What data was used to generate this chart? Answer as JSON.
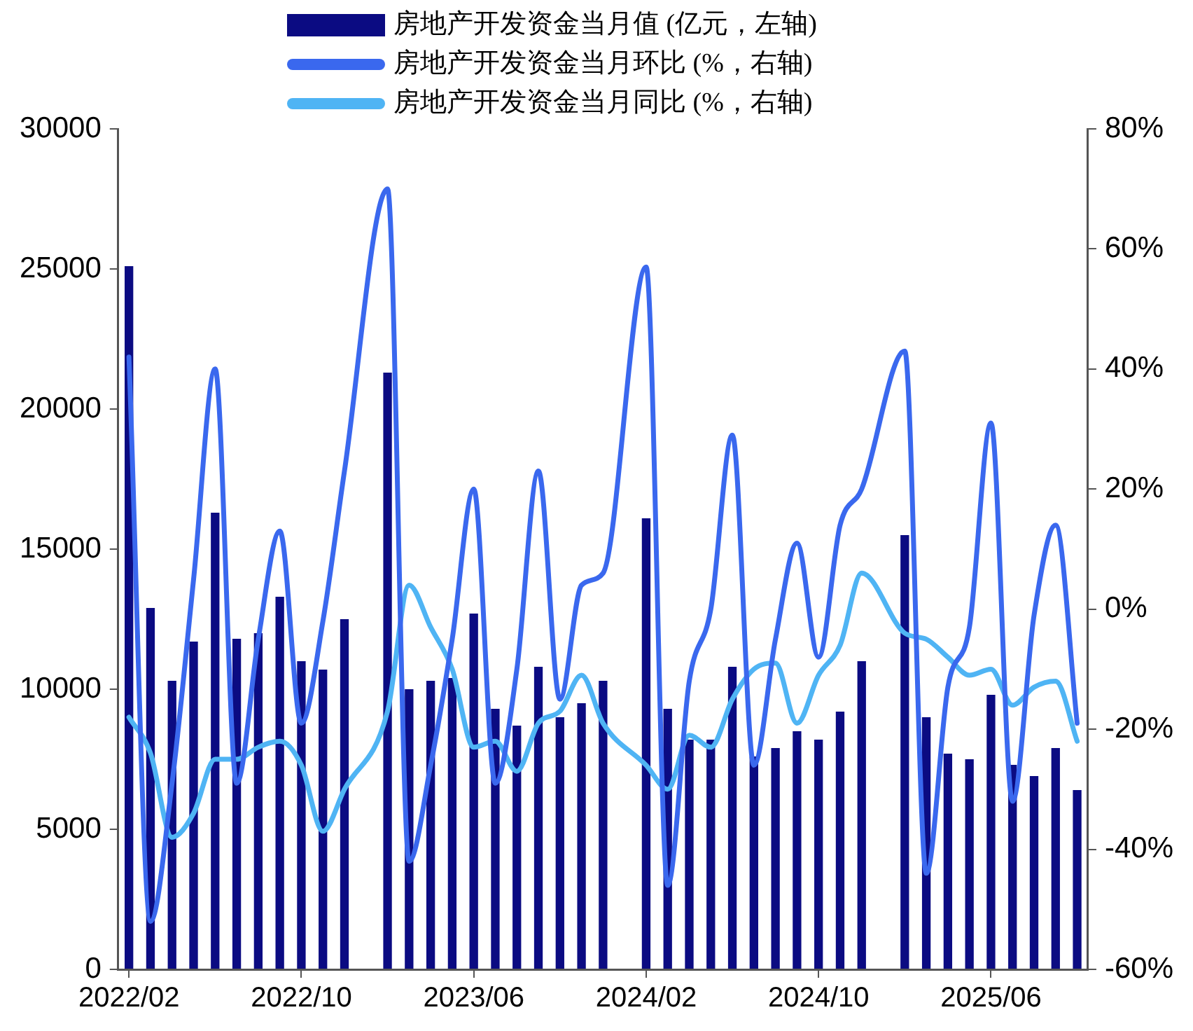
{
  "chart_data": {
    "type": "bar",
    "categories": [
      "2022/02",
      null,
      null,
      null,
      null,
      null,
      null,
      null,
      "2022/10",
      null,
      null,
      null,
      null,
      null,
      null,
      null,
      "2023/06",
      null,
      null,
      null,
      null,
      null,
      null,
      null,
      "2024/02",
      null,
      null,
      null,
      null,
      null,
      null,
      null,
      "2024/10",
      null,
      null,
      null,
      null,
      null,
      null,
      null,
      "2025/06",
      null,
      null,
      null,
      null
    ],
    "series": [
      {
        "name": "房地产开发资金当月值 (亿元，左轴)",
        "color": "#0b0b82",
        "values": [
          25100,
          12900,
          10300,
          11700,
          16300,
          11800,
          12000,
          13300,
          11000,
          10700,
          12500,
          null,
          21300,
          10000,
          10300,
          10400,
          12700,
          9300,
          8700,
          10800,
          9000,
          9500,
          10300,
          null,
          16100,
          9300,
          8200,
          8200,
          10800,
          7600,
          7900,
          8500,
          8200,
          9200,
          11000,
          null,
          15500,
          9000,
          7700,
          7500,
          9800,
          7300,
          6900,
          7900,
          6400
        ]
      },
      {
        "name": "房地产开发资金当月环比 (%，右轴)",
        "type": "line",
        "axis": "y2",
        "color": "#3a68ee",
        "values": [
          42,
          -52,
          -29,
          5,
          40,
          -29,
          -5,
          13,
          -19,
          -2,
          23,
          null,
          70,
          -42,
          -26,
          -5,
          20,
          -29,
          -10,
          23,
          -15,
          4,
          6,
          null,
          57,
          -46,
          -12,
          0,
          29,
          -26,
          -5,
          11,
          -8,
          14,
          20,
          null,
          43,
          -44,
          -13,
          -3,
          31,
          -32,
          -1,
          14,
          -19
        ]
      },
      {
        "name": "房地产开发资金当月同比 (%，右轴)",
        "type": "line",
        "axis": "y2",
        "color": "#4fb4f4",
        "values": [
          -18,
          -24,
          -38,
          -34,
          -25,
          -25,
          -23,
          -22,
          -26,
          -37,
          -30,
          null,
          -17,
          4,
          -3,
          -10,
          -23,
          -22,
          -27,
          -19,
          -17,
          -11,
          -19,
          null,
          -26,
          -30,
          -21,
          -23,
          -15,
          -10,
          -9,
          -19,
          -11,
          -6,
          6,
          null,
          -4,
          -5,
          -8,
          -11,
          -10,
          -16,
          -13,
          -12,
          -22
        ]
      }
    ],
    "ylim": [
      0,
      30000
    ],
    "yticks": [
      0,
      5000,
      10000,
      15000,
      20000,
      25000,
      30000
    ],
    "y2lim": [
      -60,
      80
    ],
    "y2ticks": [
      {
        "value": -60,
        "label": "-60%"
      },
      {
        "value": -40,
        "label": "-40%"
      },
      {
        "value": -20,
        "label": "-20%"
      },
      {
        "value": 0,
        "label": "0%"
      },
      {
        "value": 20,
        "label": "20%"
      },
      {
        "value": 40,
        "label": "40%"
      },
      {
        "value": 60,
        "label": "60%"
      },
      {
        "value": 80,
        "label": "80%"
      }
    ],
    "grid": false,
    "legend": "top",
    "marker": "none"
  }
}
